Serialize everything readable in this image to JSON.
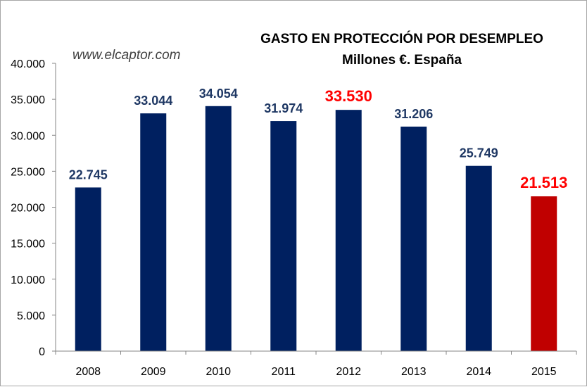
{
  "watermark": "www.elcaptor.com",
  "chart_data": {
    "type": "bar",
    "title": "GASTO EN PROTECCIÓN POR DESEMPLEO",
    "subtitle": "Millones €. España",
    "categories": [
      "2008",
      "2009",
      "2010",
      "2011",
      "2012",
      "2013",
      "2014",
      "2015"
    ],
    "values": [
      22745,
      33044,
      34054,
      31974,
      33530,
      31206,
      25749,
      21513
    ],
    "value_labels": [
      "22.745",
      "33.044",
      "34.054",
      "31.974",
      "33.530",
      "31.206",
      "25.749",
      "21.513"
    ],
    "ylim": [
      0,
      40000
    ],
    "y_ticks": [
      0,
      5000,
      10000,
      15000,
      20000,
      25000,
      30000,
      35000,
      40000
    ],
    "y_tick_labels": [
      "0",
      "5.000",
      "10.000",
      "15.000",
      "20.000",
      "25.000",
      "30.000",
      "35.000",
      "40.000"
    ],
    "grid": false,
    "legend": "none",
    "colors": {
      "bar": "#002060",
      "highlight_bar": "#c00000",
      "label": "#1f3864",
      "highlight_label": "#ff0000",
      "axis": "#868686"
    },
    "highlight_bars": [
      7
    ],
    "highlight_labels": [
      4,
      7
    ]
  }
}
